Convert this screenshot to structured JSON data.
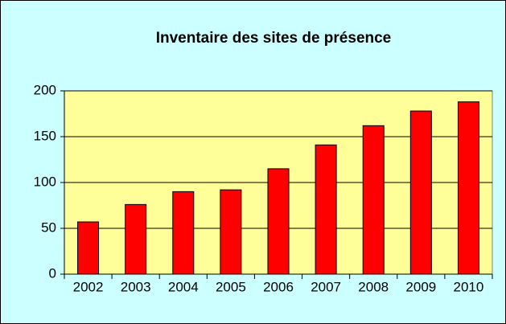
{
  "chart_data": {
    "type": "bar",
    "title": "Inventaire des sites de présence",
    "categories": [
      "2002",
      "2003",
      "2004",
      "2005",
      "2006",
      "2007",
      "2008",
      "2009",
      "2010"
    ],
    "values": [
      57,
      76,
      90,
      92,
      115,
      141,
      162,
      178,
      188
    ],
    "color": "#ff0000",
    "ylim": [
      0,
      200
    ],
    "yticks": [
      0,
      50,
      100,
      150,
      200
    ],
    "grid": true
  }
}
